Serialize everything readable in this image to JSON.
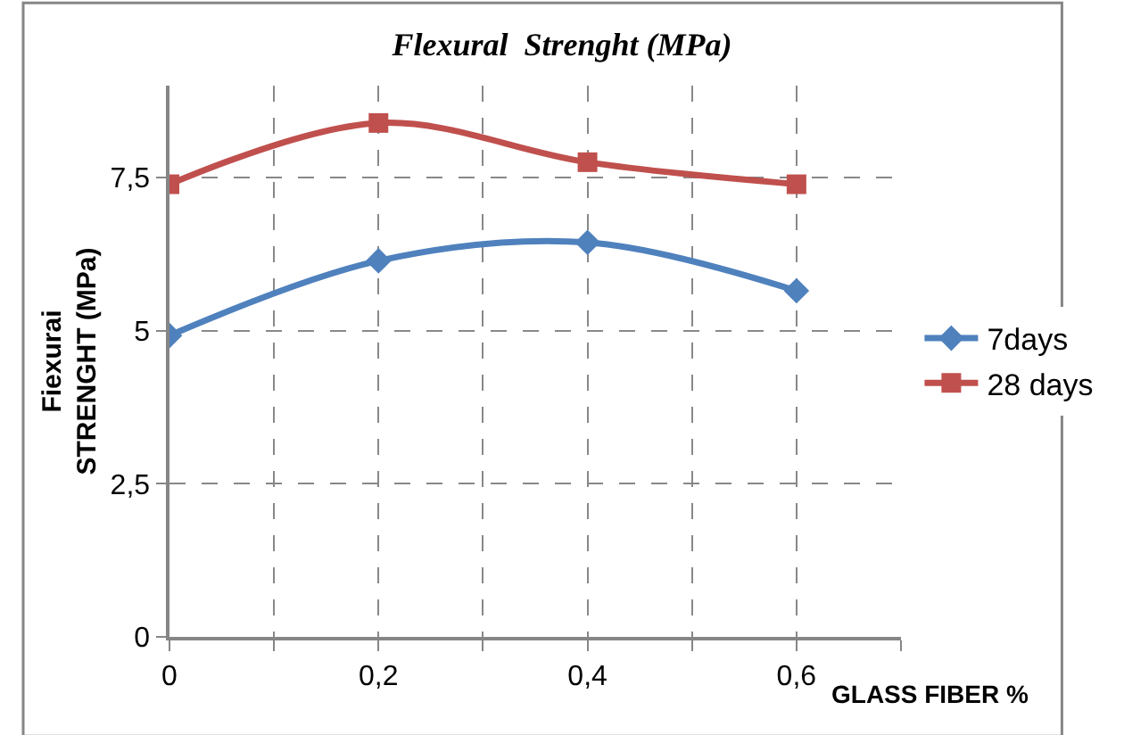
{
  "chart_data": {
    "type": "line",
    "title": "Flexural  Strenght (MPa)",
    "xlabel": "GLASS FIBER %",
    "ylabel": "Fiexurai\nSTRENGHT (MPa)",
    "x": [
      0,
      0.2,
      0.4,
      0.6
    ],
    "series": [
      {
        "name": "7days",
        "color": "#4f81bd",
        "values": [
          4.92,
          6.14,
          6.44,
          5.65
        ],
        "marker": "diamond"
      },
      {
        "name": "28 days",
        "color": "#c0504d",
        "values": [
          7.39,
          8.39,
          7.75,
          7.39
        ],
        "marker": "square"
      }
    ],
    "xlim": [
      0,
      0.7
    ],
    "xticks": [
      0,
      {
        "value": 0.1,
        "label": null
      },
      {
        "value": 0.2,
        "label": "0,2"
      },
      {
        "value": 0.3,
        "label": null
      },
      {
        "value": 0.4,
        "label": "0,4"
      },
      {
        "value": 0.5,
        "label": null
      },
      {
        "value": 0.6,
        "label": "0,6"
      },
      {
        "value": 0.7,
        "label": null
      }
    ],
    "ylim": [
      0,
      9
    ],
    "yticks": [
      0,
      {
        "value": 2.5,
        "label": "2,5"
      },
      5,
      {
        "value": 7.5,
        "label": "7,5"
      }
    ],
    "grid": true,
    "legend": "right",
    "line_style": "solid"
  }
}
